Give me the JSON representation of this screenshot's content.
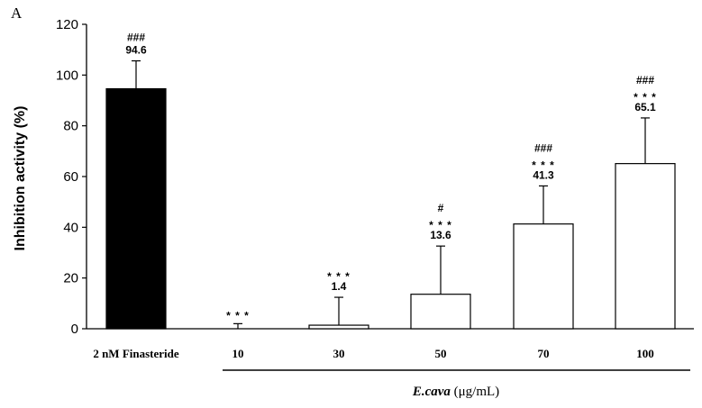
{
  "panel_label": "A",
  "chart_data": {
    "type": "bar",
    "categories": [
      "2 nM Finasteride",
      "10",
      "30",
      "50",
      "70",
      "100"
    ],
    "values": [
      94.6,
      0,
      1.4,
      13.6,
      41.3,
      65.1
    ],
    "errors": [
      11,
      2,
      11,
      19,
      15,
      18
    ],
    "value_labels": [
      "94.6",
      "",
      "1.4",
      "13.6",
      "41.3",
      "65.1"
    ],
    "significance_vs_control": [
      "",
      "* * *",
      "* * *",
      "* * *",
      "* * *",
      "* * *"
    ],
    "significance_vs_reference": [
      "###",
      "",
      "",
      "#",
      "###",
      "###"
    ],
    "bar_fills": [
      "#000000",
      "#ffffff",
      "#ffffff",
      "#ffffff",
      "#ffffff",
      "#ffffff"
    ],
    "ylabel": "Inhibition activity (%)",
    "ylim": [
      0,
      120
    ],
    "yticks": [
      "0",
      "20",
      "40",
      "60",
      "80",
      "100",
      "120"
    ],
    "xtitle_italic": "E.cava",
    "xtitle_unit": " (μg/mL)",
    "grid": false,
    "legend": false
  }
}
